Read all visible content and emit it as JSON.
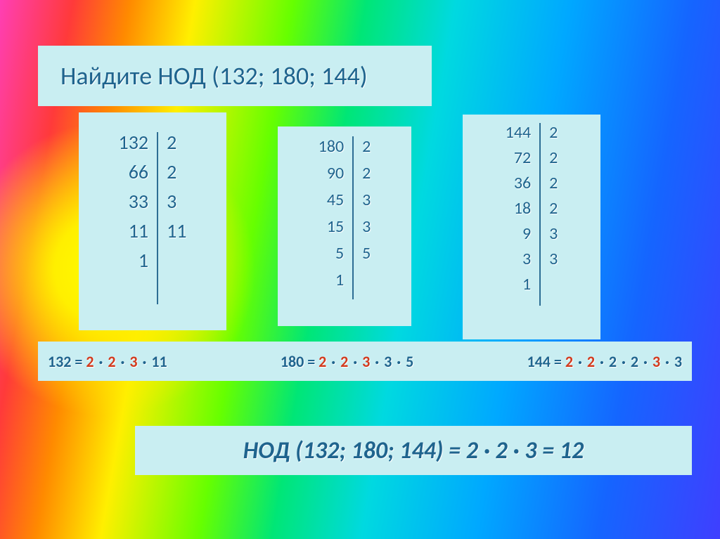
{
  "colors": {
    "panel_bg": "#c9eef2",
    "text": "#1f648e",
    "highlight": "#d23a1e",
    "divider": "#2d6d94"
  },
  "title": "Найдите  НОД  (132; 180; 144)",
  "columns": [
    {
      "left": [
        "132",
        "66",
        "33",
        "11",
        "1"
      ],
      "right": [
        "2",
        "2",
        "3",
        "11"
      ]
    },
    {
      "left": [
        "180",
        "90",
        "45",
        "15",
        "5",
        "1"
      ],
      "right": [
        "2",
        "2",
        "3",
        "3",
        "5"
      ]
    },
    {
      "left": [
        "144",
        "72",
        "36",
        "18",
        "9",
        "3",
        "1"
      ],
      "right": [
        "2",
        "2",
        "2",
        "2",
        "3",
        "3"
      ]
    }
  ],
  "equations": [
    {
      "lhs": "132 = ",
      "parts": [
        [
          "2",
          true
        ],
        [
          "2",
          true
        ],
        [
          "3",
          true
        ],
        [
          "11",
          false
        ]
      ]
    },
    {
      "lhs": "180 = ",
      "parts": [
        [
          "2",
          true
        ],
        [
          "2",
          true
        ],
        [
          "3",
          true
        ],
        [
          "3",
          false
        ],
        [
          "5",
          false
        ]
      ]
    },
    {
      "lhs": "144 = ",
      "parts": [
        [
          "2",
          true
        ],
        [
          "2",
          true
        ],
        [
          "2",
          false
        ],
        [
          "2",
          false
        ],
        [
          "3",
          true
        ],
        [
          "3",
          false
        ]
      ]
    }
  ],
  "answer": "НОД (132; 180; 144) = 2 · 2 · 3 = 12"
}
